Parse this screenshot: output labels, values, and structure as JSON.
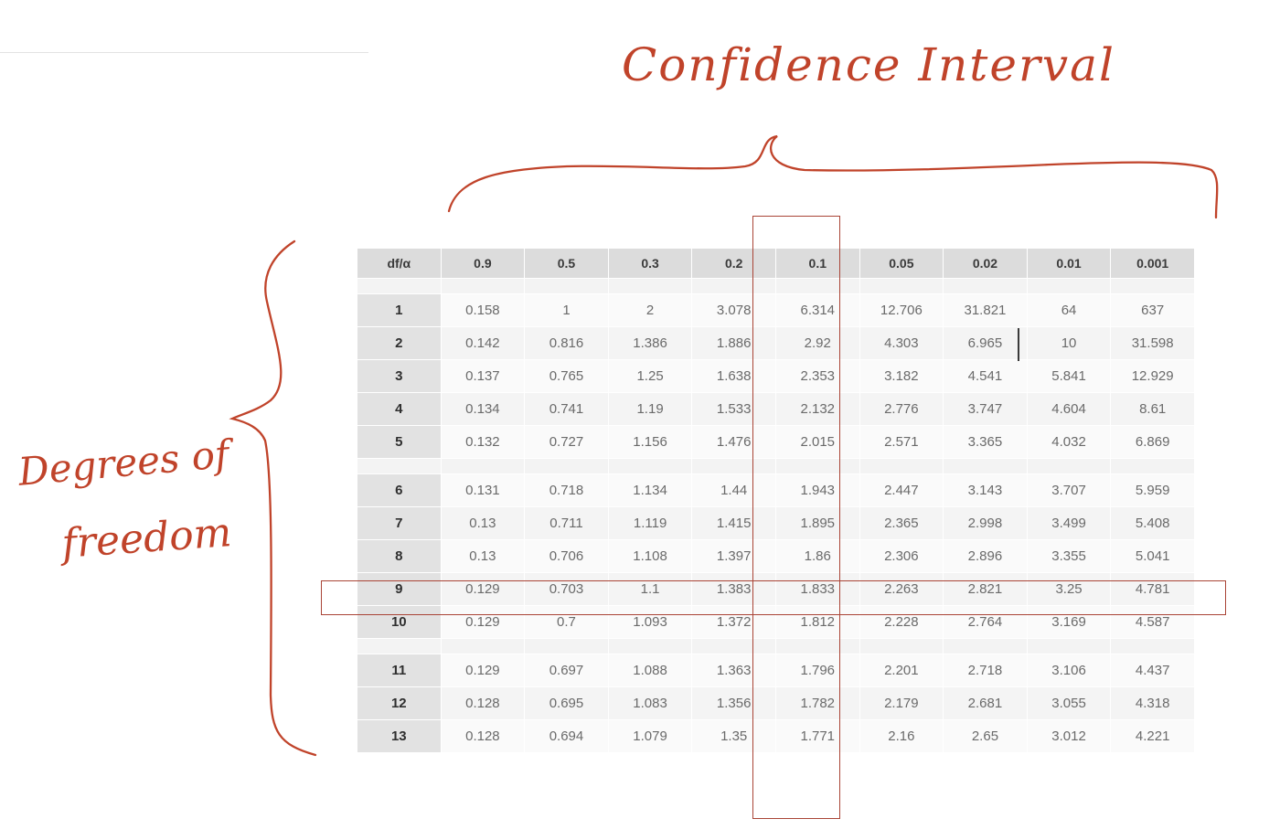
{
  "annotations": {
    "confidence_interval": "Confidence Interval",
    "degrees_of_freedom_line1": "Degrees of",
    "degrees_of_freedom_line2": "freedom"
  },
  "table": {
    "header": [
      "df/α",
      "0.9",
      "0.5",
      "0.3",
      "0.2",
      "0.1",
      "0.05",
      "0.02",
      "0.01",
      "0.001"
    ],
    "groups": [
      [
        [
          "1",
          "0.158",
          "1",
          "2",
          "3.078",
          "6.314",
          "12.706",
          "31.821",
          "64",
          "637"
        ],
        [
          "2",
          "0.142",
          "0.816",
          "1.386",
          "1.886",
          "2.92",
          "4.303",
          "6.965",
          "10",
          "31.598"
        ],
        [
          "3",
          "0.137",
          "0.765",
          "1.25",
          "1.638",
          "2.353",
          "3.182",
          "4.541",
          "5.841",
          "12.929"
        ],
        [
          "4",
          "0.134",
          "0.741",
          "1.19",
          "1.533",
          "2.132",
          "2.776",
          "3.747",
          "4.604",
          "8.61"
        ],
        [
          "5",
          "0.132",
          "0.727",
          "1.156",
          "1.476",
          "2.015",
          "2.571",
          "3.365",
          "4.032",
          "6.869"
        ]
      ],
      [
        [
          "6",
          "0.131",
          "0.718",
          "1.134",
          "1.44",
          "1.943",
          "2.447",
          "3.143",
          "3.707",
          "5.959"
        ],
        [
          "7",
          "0.13",
          "0.711",
          "1.119",
          "1.415",
          "1.895",
          "2.365",
          "2.998",
          "3.499",
          "5.408"
        ],
        [
          "8",
          "0.13",
          "0.706",
          "1.108",
          "1.397",
          "1.86",
          "2.306",
          "2.896",
          "3.355",
          "5.041"
        ],
        [
          "9",
          "0.129",
          "0.703",
          "1.1",
          "1.383",
          "1.833",
          "2.263",
          "2.821",
          "3.25",
          "4.781"
        ],
        [
          "10",
          "0.129",
          "0.7",
          "1.093",
          "1.372",
          "1.812",
          "2.228",
          "2.764",
          "3.169",
          "4.587"
        ]
      ],
      [
        [
          "11",
          "0.129",
          "0.697",
          "1.088",
          "1.363",
          "1.796",
          "2.201",
          "2.718",
          "3.106",
          "4.437"
        ],
        [
          "12",
          "0.128",
          "0.695",
          "1.083",
          "1.356",
          "1.782",
          "2.179",
          "2.681",
          "3.055",
          "4.318"
        ],
        [
          "13",
          "0.128",
          "0.694",
          "1.079",
          "1.35",
          "1.771",
          "2.16",
          "2.65",
          "3.012",
          "4.221"
        ]
      ]
    ]
  },
  "highlight": {
    "column": "0.1",
    "row": "9",
    "ink_color": "#c0432a"
  }
}
